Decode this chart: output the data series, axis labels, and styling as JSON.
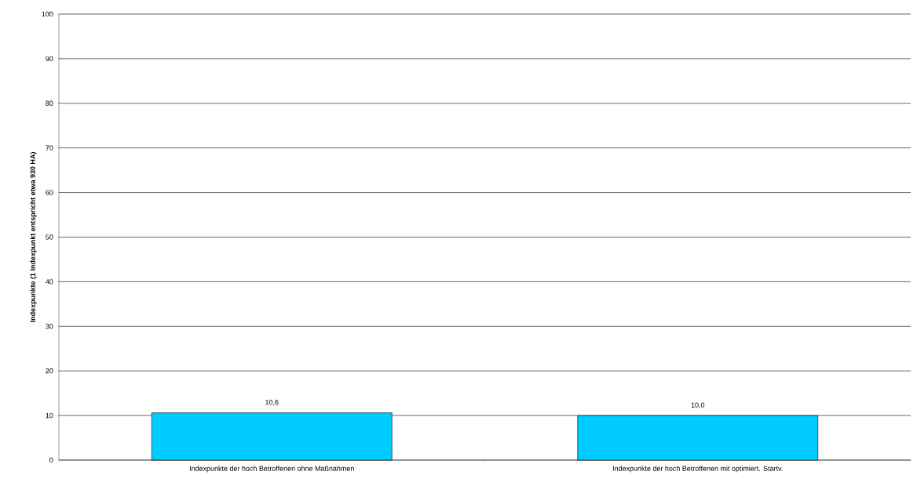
{
  "chart_data": {
    "type": "bar",
    "ylabel": "Indexpunkte (1 Indexpunkt entspricht etwa 930 HA)",
    "categories": [
      "Indexpunkte der hoch Betroffenen ohne Maßnahmen",
      "Indexpunkte der hoch Betroffenen mit optimiert. Startv."
    ],
    "values": [
      10.6,
      10.0
    ],
    "value_labels": [
      "10,6",
      "10,0"
    ],
    "color": "#00ccff",
    "ylim": [
      0,
      100
    ],
    "yticks": [
      0,
      10,
      20,
      30,
      40,
      50,
      60,
      70,
      80,
      90,
      100
    ],
    "grid": "y"
  }
}
